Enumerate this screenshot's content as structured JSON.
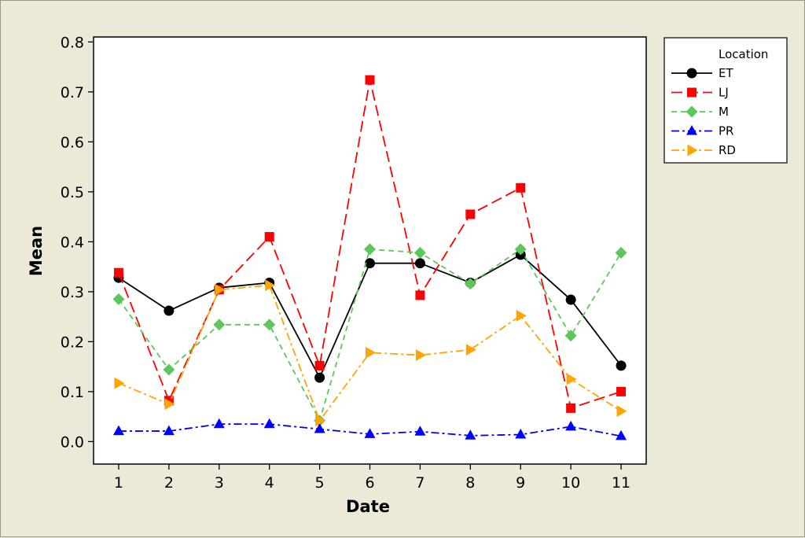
{
  "chart_data": {
    "type": "line",
    "title": "",
    "xlabel": "Date",
    "ylabel": "Mean",
    "x": [
      1,
      2,
      3,
      4,
      5,
      6,
      7,
      8,
      9,
      10,
      11
    ],
    "x_tick_labels": [
      "1",
      "2",
      "3",
      "4",
      "5",
      "6",
      "7",
      "8",
      "9",
      "10",
      "11"
    ],
    "y_ticks": [
      0.0,
      0.1,
      0.2,
      0.3,
      0.4,
      0.5,
      0.6,
      0.7,
      0.8
    ],
    "y_tick_labels": [
      "0.0",
      "0.1",
      "0.2",
      "0.3",
      "0.4",
      "0.5",
      "0.6",
      "0.7",
      "0.8"
    ],
    "xlim": [
      0.5,
      11.5
    ],
    "ylim": [
      -0.045,
      0.81
    ],
    "grid": false,
    "legend": {
      "title": "Location",
      "position": "right"
    },
    "series": [
      {
        "name": "ET",
        "color": "#000000",
        "marker": "circle",
        "dash": "solid",
        "values": [
          0.328,
          0.262,
          0.308,
          0.318,
          0.128,
          0.357,
          0.357,
          0.318,
          0.374,
          0.284,
          0.152
        ]
      },
      {
        "name": "LJ",
        "color": "#ff0000",
        "marker": "square",
        "dash": "long-dash",
        "values": [
          0.338,
          0.082,
          0.304,
          0.41,
          0.152,
          0.724,
          0.293,
          0.455,
          0.508,
          0.067,
          0.1
        ]
      },
      {
        "name": "M",
        "color": "#5cc85c",
        "marker": "diamond",
        "dash": "dash",
        "values": [
          0.285,
          0.144,
          0.234,
          0.234,
          0.042,
          0.385,
          0.378,
          0.316,
          0.385,
          0.212,
          0.378
        ]
      },
      {
        "name": "PR",
        "color": "#0000ff",
        "marker": "triangle-up",
        "dash": "dash-dot",
        "values": [
          0.021,
          0.021,
          0.035,
          0.035,
          0.025,
          0.015,
          0.02,
          0.012,
          0.014,
          0.03,
          0.011
        ]
      },
      {
        "name": "RD",
        "color": "#ffa500",
        "marker": "triangle-right",
        "dash": "dash-dot",
        "values": [
          0.117,
          0.075,
          0.304,
          0.313,
          0.042,
          0.178,
          0.173,
          0.184,
          0.252,
          0.125,
          0.061
        ]
      }
    ]
  }
}
